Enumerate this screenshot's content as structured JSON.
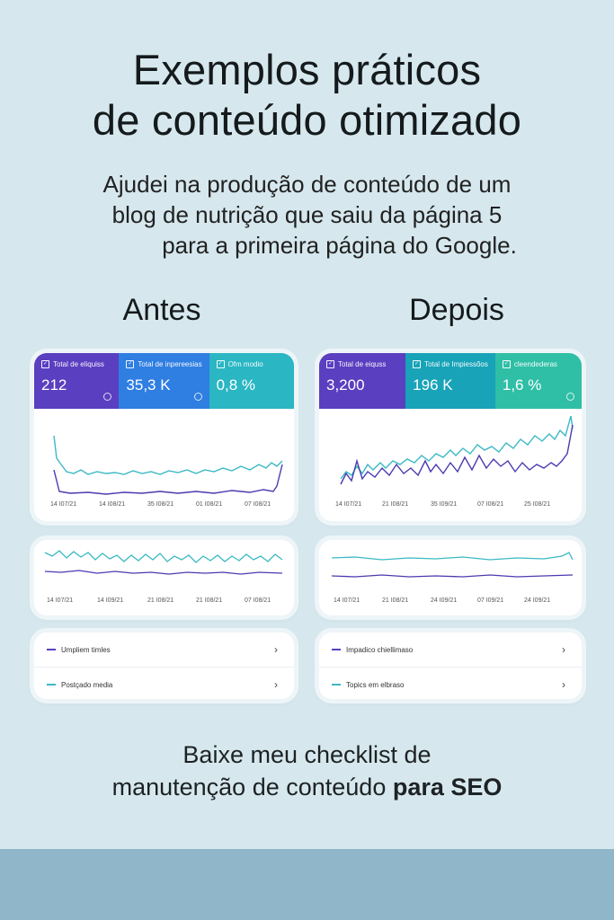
{
  "title": {
    "line1": "Exemplos práticos",
    "line2": "de conteúdo otimizado"
  },
  "subtitle": {
    "line1": "Ajudei na produção de conteúdo de um",
    "line2": "blog de nutrição que saiu da página 5",
    "line3": "para a primeira página do Google."
  },
  "before": {
    "label": "Antes",
    "metrics": [
      {
        "label": "Total de eliquiss",
        "value": "212",
        "color": "#5a3fc0"
      },
      {
        "label": "Total de inpereesias",
        "value": "35,3 K",
        "color": "#2f7ee2"
      },
      {
        "label": "Ofm modio",
        "value": "0,8 %",
        "color": "#2ab6c3"
      }
    ],
    "main_dates": [
      "14 I07/21",
      "14 I08/21",
      "35 I08/21",
      "01 I08/21",
      "07 I08/21"
    ],
    "mini_dates": [
      "14 I07/21",
      "14 I09/21",
      "21 I08/21",
      "21 I08/21",
      "07 I08/21"
    ],
    "legend": [
      {
        "label": "Umpliem timles",
        "color": "#5a3fc0"
      },
      {
        "label": "Postçado media",
        "color": "#3bb9c4"
      }
    ]
  },
  "after": {
    "label": "Depois",
    "metrics": [
      {
        "label": "Total de eiquss",
        "value": "3,200",
        "color": "#5a3fc0"
      },
      {
        "label": "Total de Impiessõos",
        "value": "196 K",
        "color": "#18a3b8"
      },
      {
        "label": "cleendederas",
        "value": "1,6 %",
        "color": "#2fbfa6"
      }
    ],
    "main_dates": [
      "14 I07/21",
      "21 I08/21",
      "35 I09/21",
      "07 I08/21",
      "25 I08/21"
    ],
    "mini_dates": [
      "14 I07/21",
      "21 I08/21",
      "24 I09/21",
      "07 I09/21",
      "24 I09/21"
    ],
    "legend": [
      {
        "label": "Impadico chiellimaso",
        "color": "#5a3fc0"
      },
      {
        "label": "Topics em elbraso",
        "color": "#3bb9c4"
      }
    ]
  },
  "cta": {
    "line1": "Baixe meu checklist de",
    "line2_normal": "manutenção de conteúdo ",
    "line2_bold": "para SEO"
  },
  "icons": {
    "checkbox": "checkbox-icon",
    "help": "help-circle-icon",
    "chevron": "chevron-right-icon"
  }
}
